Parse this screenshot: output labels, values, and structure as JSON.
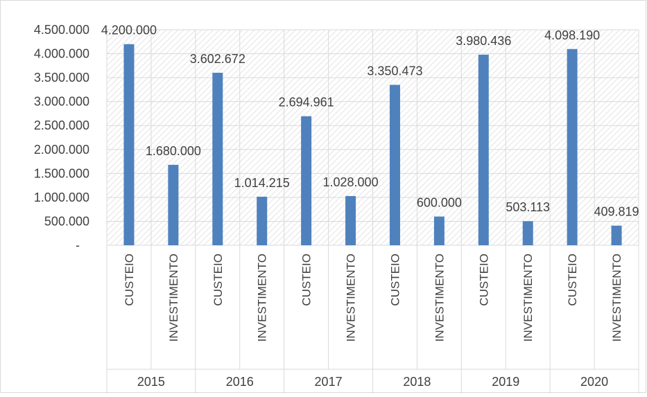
{
  "chart_data": {
    "type": "bar",
    "title": "",
    "xlabel": "",
    "ylabel": "",
    "years": [
      "2015",
      "2016",
      "2017",
      "2018",
      "2019",
      "2020"
    ],
    "subcategories": [
      "CUSTEIO",
      "INVESTIMENTO"
    ],
    "categories": [
      "2015 CUSTEIO",
      "2015 INVESTIMENTO",
      "2016 CUSTEIO",
      "2016 INVESTIMENTO",
      "2017 CUSTEIO",
      "2017 INVESTIMENTO",
      "2018 CUSTEIO",
      "2018 INVESTIMENTO",
      "2019 CUSTEIO",
      "2019 INVESTIMENTO",
      "2020 CUSTEIO",
      "2020 INVESTIMENTO"
    ],
    "values": [
      4200000,
      1680000,
      3602672,
      1014215,
      2694961,
      1028000,
      3350473,
      600000,
      3980436,
      503113,
      4098190,
      409819
    ],
    "value_labels": [
      "4.200.000",
      "1.680.000",
      "3.602.672",
      "1.014.215",
      "2.694.961",
      "1.028.000",
      "3.350.473",
      "600.000",
      "3.980.436",
      "503.113",
      "4.098.190",
      "409.819"
    ],
    "y_ticks": [
      0,
      500000,
      1000000,
      1500000,
      2000000,
      2500000,
      3000000,
      3500000,
      4000000,
      4500000
    ],
    "y_tick_labels": [
      "-",
      "500.000",
      "1.000.000",
      "1.500.000",
      "2.000.000",
      "2.500.000",
      "3.000.000",
      "3.500.000",
      "4.000.000",
      "4.500.000"
    ],
    "ylim": [
      0,
      4500000
    ],
    "grid": true,
    "legend": "none",
    "colors": {
      "bar": "#4f81bd",
      "grid": "#d9d9d9",
      "plot_hatch": "#e6e6e6",
      "text": "#404040"
    }
  }
}
